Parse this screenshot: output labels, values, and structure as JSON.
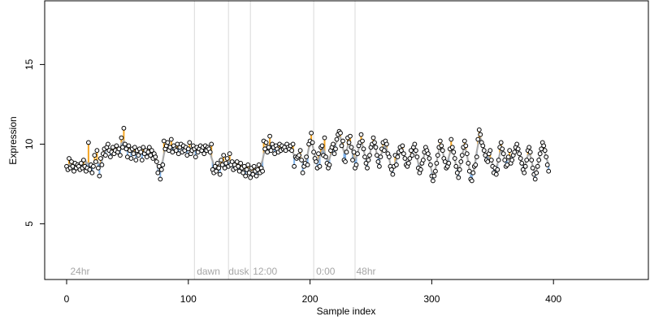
{
  "chart_data": {
    "type": "scatter",
    "xlabel": "Sample index",
    "ylabel": "Expression",
    "xlim": [
      -18,
      478
    ],
    "ylim": [
      1.5,
      19
    ],
    "xticks": [
      0,
      100,
      200,
      300,
      400
    ],
    "yticks": [
      5,
      10,
      15
    ],
    "grid": false,
    "section_dividers": [
      105,
      133,
      151,
      203,
      237
    ],
    "section_labels": [
      {
        "label": "24hr",
        "x": 3
      },
      {
        "label": "dawn",
        "x": 107
      },
      {
        "label": "dusk",
        "x": 133
      },
      {
        "label": "12:00",
        "x": 153
      },
      {
        "label": "0:00",
        "x": 205
      },
      {
        "label": "48hr",
        "x": 238
      }
    ],
    "trend_color": "#aaaaaa",
    "above_color": "#f5a623",
    "below_color": "#7fb1e8",
    "point_color": "#000000",
    "series": [
      {
        "y": [
          8.6,
          8.4,
          9.1,
          8.5,
          8.9,
          8.6,
          8.3,
          8.8,
          8.5,
          8.7,
          8.6,
          8.4,
          8.8,
          8.5,
          9.0,
          8.6,
          8.3,
          8.5,
          10.1,
          8.4,
          8.7,
          8.2,
          8.6,
          9.3,
          8.9,
          9.6,
          8.5,
          8.0,
          9.1,
          8.7,
          9.4,
          9.7,
          9.3,
          9.8,
          10.0,
          9.6,
          9.2,
          9.5,
          9.8,
          9.4,
          9.6,
          9.9,
          9.5,
          9.7,
          9.3,
          10.4,
          9.8,
          11.0,
          10.0,
          9.7,
          9.2,
          9.9,
          9.6,
          9.1,
          9.7,
          9.4,
          9.8,
          9.0,
          9.6,
          9.3,
          9.7,
          9.5,
          9.0,
          9.8,
          9.4,
          9.6,
          9.2,
          9.5,
          9.8,
          9.3,
          9.6,
          9.1,
          9.4,
          9.2,
          8.9,
          8.2,
          8.6,
          7.8,
          8.4,
          8.7,
          10.2,
          9.7,
          9.9,
          10.1,
          9.6,
          9.8,
          10.3,
          9.5,
          9.9,
          9.7,
          9.6,
          10.0,
          9.4,
          9.8,
          10.0,
          9.5,
          9.9,
          9.6,
          9.8,
          9.3,
          9.7,
          10.1,
          9.4,
          9.6,
          9.9,
          9.7,
          9.2,
          9.8,
          9.5,
          9.7,
          9.9,
          9.6,
          9.8,
          9.4,
          9.9,
          9.6,
          9.8,
          9.7,
          9.5,
          10.0,
          8.4,
          8.2,
          8.6,
          8.3,
          8.8,
          8.5,
          8.1,
          9.0,
          8.7,
          9.3,
          8.5,
          8.8,
          9.1,
          8.6,
          9.4,
          8.7,
          8.9,
          8.4,
          8.7,
          8.5,
          8.9,
          8.6,
          8.3,
          8.8,
          8.5,
          8.2,
          8.6,
          8.0,
          8.4,
          8.7,
          8.2,
          7.9,
          8.5,
          8.1,
          8.6,
          8.3,
          8.0,
          8.4,
          8.7,
          8.2,
          8.5,
          8.3,
          10.2,
          9.7,
          10.1,
          9.5,
          9.8,
          10.5,
          9.6,
          10.0,
          9.8,
          9.4,
          9.9,
          9.7,
          9.5,
          10.0,
          9.6,
          9.9,
          9.7,
          9.8,
          9.6,
          10.0,
          9.8,
          9.7,
          9.9,
          9.6,
          10.0,
          8.6,
          9.2,
          9.1,
          9.2,
          9.3,
          9.6,
          9.0,
          8.2,
          8.6,
          8.8,
          9.2,
          8.7,
          10.0,
          10.2,
          10.7,
          10.1,
          9.5,
          9.1,
          8.9,
          8.5,
          9.4,
          8.6,
          9.8,
          9.9,
          9.3,
          10.4,
          9.2,
          8.8,
          8.5,
          8.7,
          9.6,
          9.8,
          10.0,
          9.4,
          9.7,
          10.3,
          10.6,
          10.8,
          10.7,
          9.9,
          10.2,
          9.0,
          8.9,
          9.5,
          10.4,
          10.1,
          10.5,
          9.8,
          9.0,
          9.5,
          8.5,
          8.7,
          9.4,
          9.9,
          10.1,
          10.6,
          10.2,
          9.7,
          9.2,
          8.8,
          8.5,
          9.0,
          9.3,
          9.8,
          10.0,
          10.4,
          10.1,
          9.8,
          9.3,
          8.9,
          8.6,
          9.2,
          9.7,
          10.1,
          9.6,
          10.2,
          10.0,
          9.4,
          9.2,
          8.6,
          8.4,
          8.1,
          8.6,
          9.3,
          8.7,
          9.2,
          9.5,
          9.8,
          9.6,
          9.9,
          9.4,
          9.1,
          8.7,
          8.6,
          8.8,
          9.1,
          9.6,
          9.3,
          9.8,
          10.0,
          9.6,
          9.2,
          8.5,
          8.2,
          8.4,
          8.8,
          9.0,
          9.5,
          9.8,
          9.6,
          9.4,
          9.1,
          8.7,
          8.0,
          7.7,
          8.0,
          8.3,
          8.8,
          9.3,
          9.8,
          10.2,
          9.9,
          9.6,
          9.1,
          8.9,
          8.5,
          8.6,
          8.8,
          9.7,
          10.3,
          9.8,
          9.5,
          9.1,
          8.6,
          8.2,
          7.9,
          8.4,
          8.9,
          9.3,
          9.8,
          10.2,
          9.9,
          9.4,
          8.8,
          8.3,
          7.8,
          7.7,
          8.2,
          8.6,
          8.7,
          9.2,
          10.3,
          10.9,
          10.6,
          10.1,
          9.9,
          9.6,
          9.3,
          9.0,
          8.9,
          9.4,
          9.6,
          9.0,
          8.6,
          8.2,
          8.5,
          8.1,
          8.4,
          9.0,
          9.8,
          10.1,
          9.7,
          9.4,
          9.0,
          8.6,
          8.7,
          9.2,
          9.6,
          8.8,
          9.0,
          9.3,
          9.5,
          9.8,
          10.0,
          9.7,
          9.4,
          9.1,
          8.8,
          8.4,
          8.2,
          8.6,
          9.0,
          9.6,
          9.8,
          9.5,
          9.0,
          8.5,
          8.1,
          7.8,
          8.2,
          8.6,
          9.0,
          9.4,
          9.7,
          10.1,
          9.9,
          9.6,
          9.2,
          8.7,
          8.3
        ]
      }
    ]
  }
}
